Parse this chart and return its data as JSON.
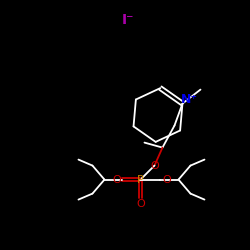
{
  "background_color": "#000000",
  "bond_color": "#ffffff",
  "iodide_color": "#aa00aa",
  "nitrogen_color": "#0000ee",
  "phosphorus_color": "#cc8800",
  "oxygen_color": "#cc0000",
  "iodide_label": "I⁻",
  "nitrogen_label": "N⁺",
  "phosphorus_label": "P",
  "figsize": [
    2.5,
    2.5
  ],
  "dpi": 100,
  "lw": 1.3
}
